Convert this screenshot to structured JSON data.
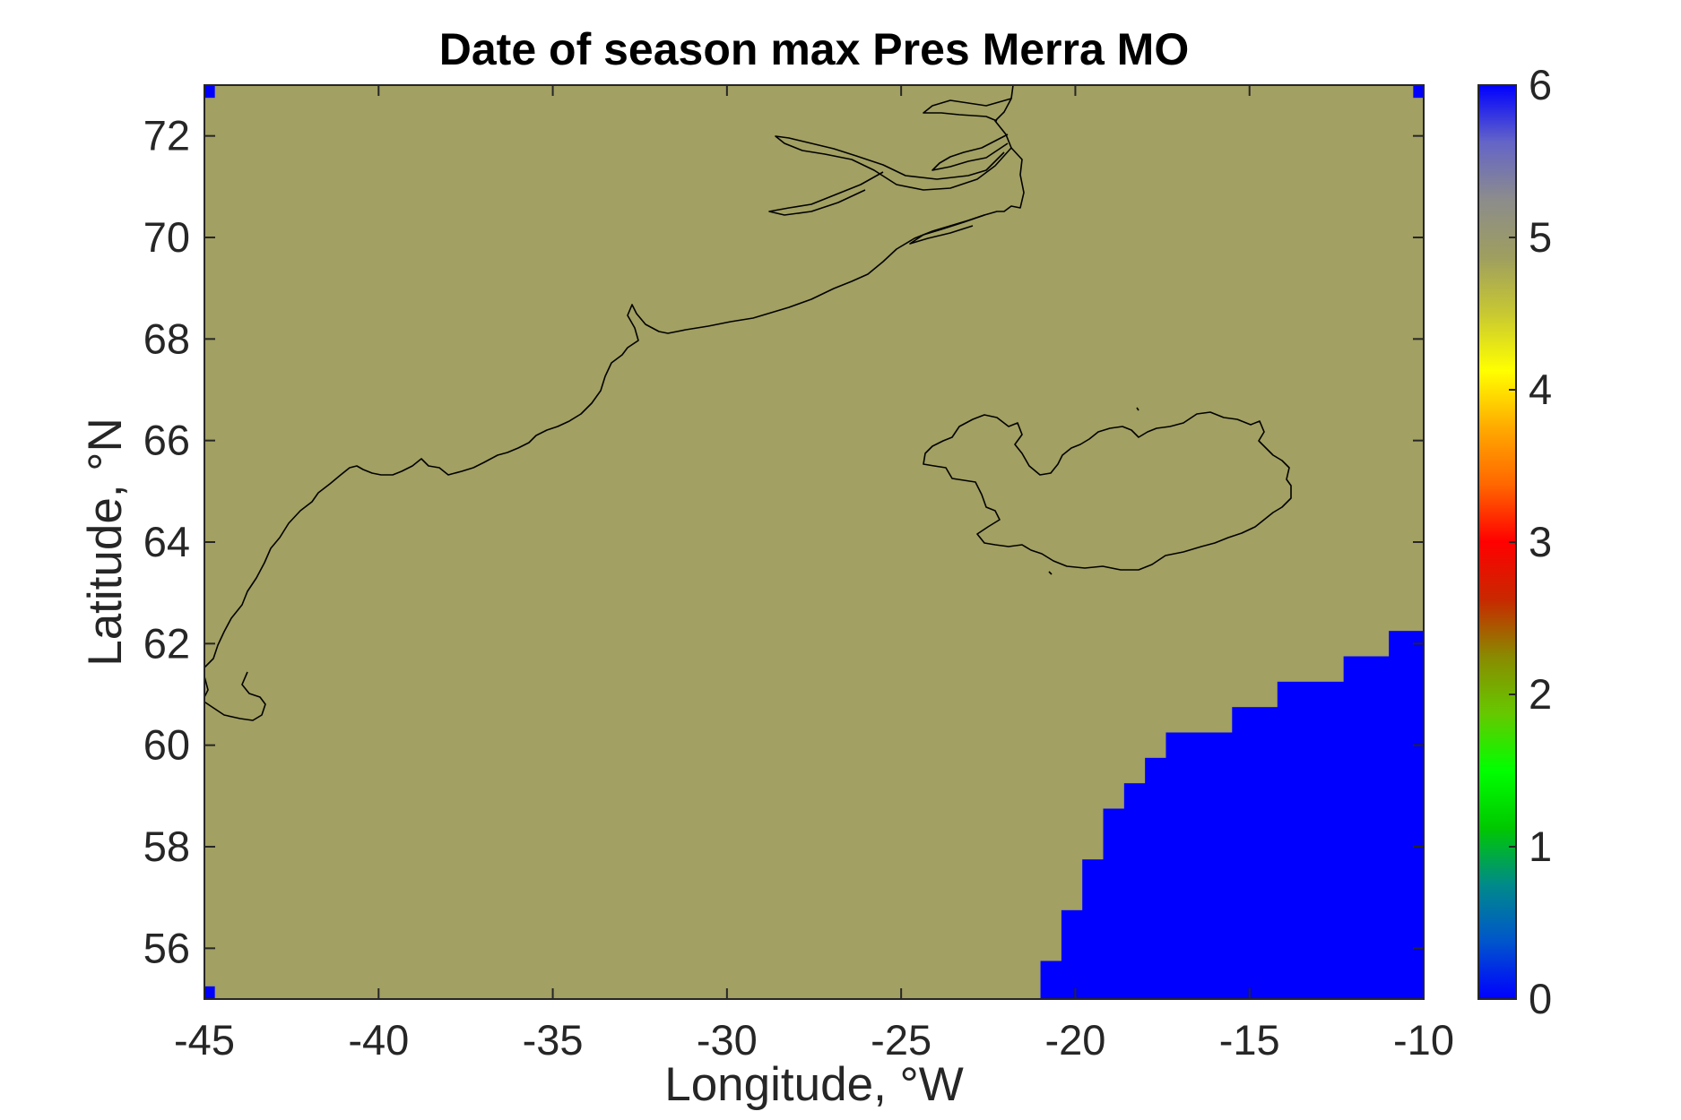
{
  "chart_data": {
    "type": "heatmap",
    "title": "Date of season max Pres Merra MO",
    "xlabel": "Longitude, °W",
    "ylabel": "Latitude, °N",
    "xlim": [
      -45,
      -10
    ],
    "ylim": [
      55,
      73
    ],
    "xticks": [
      -45,
      -40,
      -35,
      -30,
      -25,
      -20,
      -15,
      -10
    ],
    "yticks": [
      56,
      58,
      60,
      62,
      64,
      66,
      68,
      70,
      72
    ],
    "colorbar": {
      "limits": [
        0,
        6
      ],
      "ticks": [
        0,
        1,
        2,
        3,
        4,
        5,
        6
      ],
      "colormap": [
        "#0000ff",
        "#0055cc",
        "#008a8a",
        "#00c800",
        "#00ff00",
        "#66c800",
        "#8a8a00",
        "#c82800",
        "#ff0000",
        "#ff6600",
        "#ffaa00",
        "#ffff00",
        "#c8c832",
        "#9e9e60",
        "#8c8c8c",
        "#6464c8",
        "#0000ff"
      ]
    },
    "background_value": 5.2,
    "background_color": "#a2a062",
    "max_color": "#0000ff",
    "cells_value_6": {
      "description_region": "south-east",
      "columns": [
        {
          "lon": [
            -21.0,
            -20.4
          ],
          "lat_top": 55.75
        },
        {
          "lon": [
            -20.4,
            -19.8
          ],
          "lat_top": 56.75
        },
        {
          "lon": [
            -19.8,
            -19.2
          ],
          "lat_top": 57.75
        },
        {
          "lon": [
            -19.2,
            -18.6
          ],
          "lat_top": 58.75
        },
        {
          "lon": [
            -18.6,
            -18.0
          ],
          "lat_top": 59.25
        },
        {
          "lon": [
            -18.0,
            -17.4
          ],
          "lat_top": 59.75
        },
        {
          "lon": [
            -17.4,
            -15.5
          ],
          "lat_top": 60.25
        },
        {
          "lon": [
            -15.5,
            -14.2
          ],
          "lat_top": 60.75
        },
        {
          "lon": [
            -14.2,
            -12.3
          ],
          "lat_top": 61.25
        },
        {
          "lon": [
            -12.3,
            -11.0
          ],
          "lat_top": 61.75
        },
        {
          "lon": [
            -11.0,
            -10.0
          ],
          "lat_top": 62.25
        }
      ],
      "corner_cells": [
        {
          "lon": [
            -45.0,
            -44.7
          ],
          "lat": [
            72.75,
            73.0
          ]
        },
        {
          "lon": [
            -10.3,
            -10.0
          ],
          "lat": [
            72.75,
            73.0
          ]
        },
        {
          "lon": [
            -45.0,
            -44.7
          ],
          "lat": [
            55.0,
            55.25
          ]
        }
      ]
    },
    "grid": false,
    "legend": "none"
  }
}
